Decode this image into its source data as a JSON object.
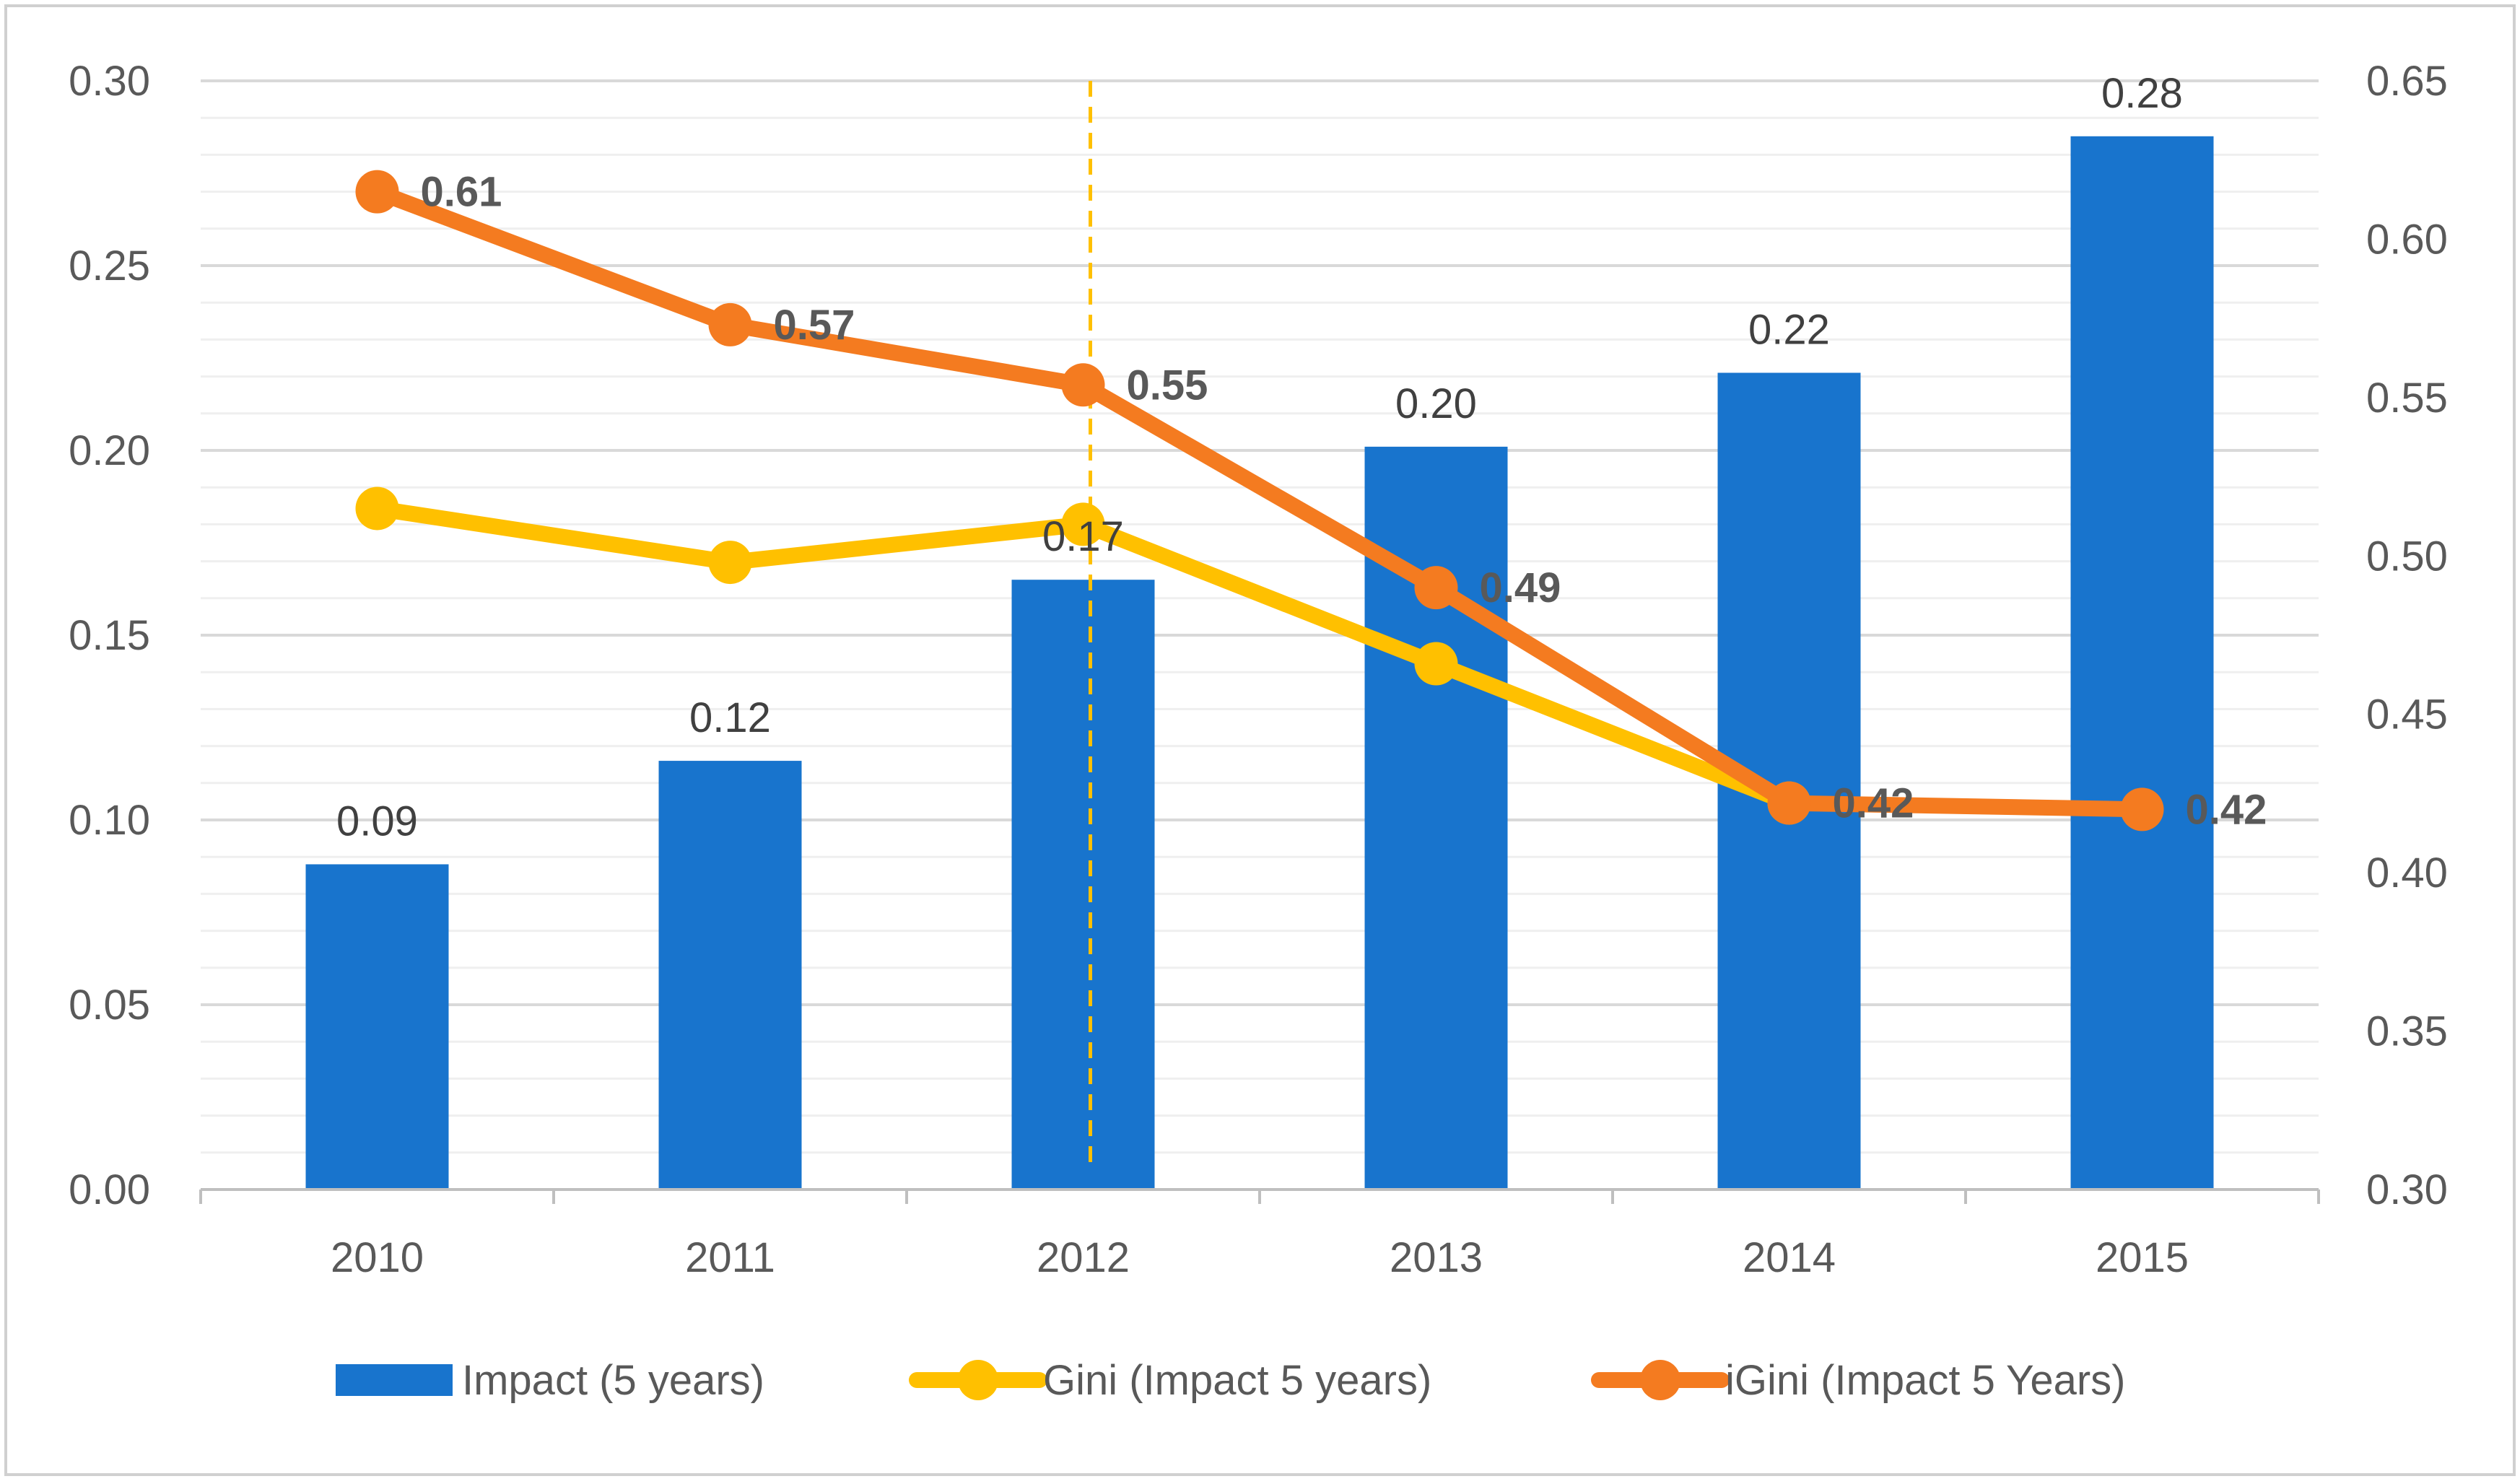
{
  "chart_data": {
    "type": "bar+line",
    "categories": [
      "2010",
      "2011",
      "2012",
      "2013",
      "2014",
      "2015"
    ],
    "left_axis": {
      "min": 0,
      "max": 0.3,
      "ticks": [
        "0.00",
        "0.05",
        "0.10",
        "0.15",
        "0.20",
        "0.25",
        "0.30"
      ]
    },
    "right_axis": {
      "min": 0.3,
      "max": 0.65,
      "ticks": [
        "0.30",
        "0.35",
        "0.40",
        "0.45",
        "0.50",
        "0.55",
        "0.60",
        "0.65"
      ]
    },
    "series": [
      {
        "name": "Impact (5 years)",
        "type": "bar",
        "axis": "left",
        "color": "#1874CD",
        "values": [
          0.088,
          0.116,
          0.165,
          0.201,
          0.221,
          0.285
        ],
        "labels": [
          "0.09",
          "0.12",
          "0.17",
          "0.20",
          "0.22",
          "0.28"
        ]
      },
      {
        "name": "Gini (Impact 5 years)",
        "type": "line",
        "axis": "right",
        "color": "#FFC000",
        "values": [
          0.515,
          0.498,
          0.51,
          0.466,
          0.422,
          null
        ]
      },
      {
        "name": "iGini (Impact 5 Years)",
        "type": "line",
        "axis": "right",
        "color": "#F47B20",
        "values": [
          0.615,
          0.573,
          0.554,
          0.49,
          0.422,
          0.42
        ],
        "labels": [
          "0.61",
          "0.57",
          "0.55",
          "0.49",
          "0.42",
          "0.42"
        ]
      }
    ],
    "marker_line": {
      "category": "2012",
      "color": "#FFC000",
      "style": "dashed"
    },
    "legend": {
      "position": "bottom",
      "items": [
        "Impact (5 years)",
        "Gini (Impact 5 years)",
        "iGini (Impact 5 Years)"
      ]
    },
    "gridlines": true
  }
}
